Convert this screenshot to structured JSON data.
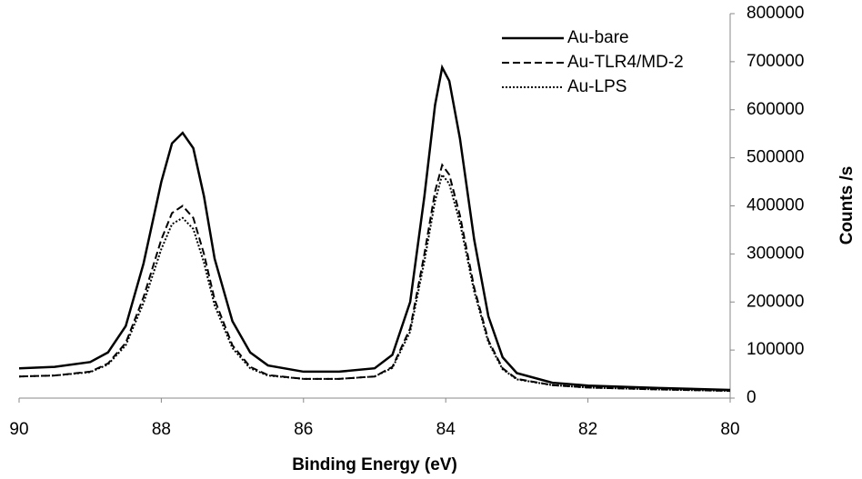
{
  "chart_data": {
    "type": "line",
    "x_label": "Binding Energy (eV)",
    "y_label": "Counts /s",
    "x": [
      90,
      89.5,
      89,
      88.75,
      88.5,
      88.25,
      88,
      87.85,
      87.7,
      87.55,
      87.4,
      87.25,
      87,
      86.75,
      86.5,
      86,
      85.5,
      85,
      84.75,
      84.5,
      84.3,
      84.15,
      84.05,
      83.95,
      83.8,
      83.6,
      83.4,
      83.2,
      83,
      82.5,
      82,
      81,
      80
    ],
    "series": [
      {
        "name": "Au-bare",
        "color": "#000000",
        "dash": "solid",
        "values": [
          62000,
          65000,
          75000,
          95000,
          150000,
          280000,
          450000,
          530000,
          552000,
          520000,
          420000,
          290000,
          160000,
          95000,
          68000,
          55000,
          55000,
          62000,
          90000,
          200000,
          420000,
          610000,
          688000,
          660000,
          540000,
          330000,
          170000,
          85000,
          52000,
          32000,
          26000,
          21000,
          17000
        ]
      },
      {
        "name": "Au-TLR4/MD-2",
        "color": "#000000",
        "dash": "dashed",
        "values": [
          45000,
          47000,
          55000,
          72000,
          115000,
          210000,
          330000,
          385000,
          400000,
          375000,
          300000,
          205000,
          110000,
          65000,
          48000,
          40000,
          40000,
          45000,
          65000,
          145000,
          300000,
          430000,
          485000,
          465000,
          380000,
          230000,
          120000,
          62000,
          40000,
          27000,
          22000,
          18000,
          15000
        ]
      },
      {
        "name": "Au-LPS",
        "color": "#000000",
        "dash": "dotted",
        "values": [
          45000,
          47000,
          54000,
          70000,
          110000,
          198000,
          310000,
          362000,
          375000,
          352000,
          282000,
          193000,
          104000,
          62000,
          47000,
          40000,
          40000,
          45000,
          63000,
          138000,
          285000,
          410000,
          465000,
          446000,
          365000,
          222000,
          116000,
          60000,
          39000,
          27000,
          22000,
          18000,
          15000
        ]
      }
    ],
    "xlim": [
      90,
      80
    ],
    "xticks": [
      90,
      88,
      86,
      84,
      82,
      80
    ],
    "ylim": [
      0,
      800000
    ],
    "yticks": [
      0,
      100000,
      200000,
      300000,
      400000,
      500000,
      600000,
      700000,
      800000
    ],
    "y_axis_side": "right",
    "grid": false,
    "legend": "upper right"
  }
}
